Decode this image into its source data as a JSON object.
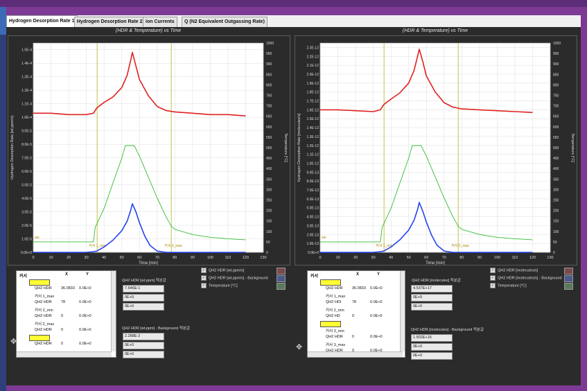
{
  "tabs": [
    {
      "label": "Hydrogen Desorption Rate 1",
      "active": true
    },
    {
      "label": "Hydrogen Desorption Rate 2",
      "active": false
    },
    {
      "label": "ion Currents",
      "active": false
    },
    {
      "label": "Q (N2 Equivalent Outgassing Rate)",
      "active": false
    }
  ],
  "colors": {
    "hdr": "#e02020",
    "background": "#2244ee",
    "temperature": "#33bb33",
    "cursor": "#bbbb33"
  },
  "left": {
    "title": "(HDR & Temperature) vs Time",
    "ylabel": "Hydrogen Desorption Rate [wt.ppm/s]",
    "y2label": "Temperature [°C]",
    "xlabel": "Time [min]",
    "yticks": [
      "0.0E+0",
      "1.0E-5",
      "2.0E-5",
      "3.0E-5",
      "4.0E-5",
      "5.0E-5",
      "6.0E-5",
      "7.0E-5",
      "8.0E-5",
      "9.0E-5",
      "1.0E-4",
      "1.1E-4",
      "1.2E-4",
      "1.3E-4",
      "1.4E-4",
      "1.5E-4"
    ],
    "cursor_labels": {
      "left": "커서 1_min",
      "right": "커서 2_max",
      "y": "ain"
    },
    "cursor_table": {
      "head": {
        "cursor": "커서",
        "x": "X",
        "y": "Y"
      },
      "rows": [
        {
          "name": "",
          "x": "",
          "y": "",
          "swatch": true
        },
        {
          "name": "QH2 HDR",
          "x": "36.0833",
          "y": "0.0E+0",
          "swatch": false
        },
        {
          "name": "커서 1_max",
          "x": "",
          "y": "",
          "swatch": false
        },
        {
          "name": "QH2 HDR",
          "x": "78",
          "y": "0.0E+0",
          "swatch": false
        },
        {
          "name": "커서 2_min",
          "x": "",
          "y": "",
          "swatch": false
        },
        {
          "name": "QH2 HDR",
          "x": "0",
          "y": "0.0E+0",
          "swatch": false
        },
        {
          "name": "커서 2_max",
          "x": "",
          "y": "",
          "swatch": false
        },
        {
          "name": "QH2 HDR",
          "x": "0",
          "y": "0.0E+0",
          "swatch": false
        },
        {
          "name": "",
          "x": "",
          "y": "",
          "swatch": true
        },
        {
          "name": "QH2 HDR",
          "x": "0",
          "y": "0.0E+0",
          "swatch": false
        }
      ]
    },
    "group1": {
      "label": "QH2 HDR [wt.ppm] 적분값",
      "values": [
        "7.646E-1",
        "0E+0",
        "0E+0"
      ]
    },
    "group2": {
      "label": "QH2 HDR [wt.ppm] - Background 적분값",
      "values": [
        "2.288E-2",
        "0E+0",
        "0E+0"
      ]
    },
    "legend": [
      "QH2 HDR [wt.ppm/s]",
      "QH2 HDR [wt.ppm/s] - Background",
      "Temperature [°C]"
    ]
  },
  "right": {
    "title": "(HDR & Temperature) vs Time",
    "ylabel": "Hydrogen Desorption Rate [molecules/s]",
    "y2label": "Temperature [°C]",
    "xlabel": "Time [min]",
    "yticks": [
      "0.0E+0",
      "1.0E-13",
      "2.0E-13",
      "3.0E-13",
      "4.0E-13",
      "5.0E-13",
      "6.0E-13",
      "7.0E-13",
      "8.0E-13",
      "9.0E-13",
      "1.0E-12",
      "1.1E-12",
      "1.2E-12",
      "1.3E-12",
      "1.4E-12",
      "1.5E-12",
      "1.6E-12",
      "1.7E-12",
      "1.8E-12",
      "1.9E-12",
      "2.0E-12",
      "2.1E-12",
      "2.2E-12",
      "2.3E-12"
    ],
    "cursor_labels": {
      "left": "커서 1_min",
      "right": "커서 2_max",
      "y": "ain"
    },
    "cursor_table": {
      "head": {
        "cursor": "커서",
        "x": "X",
        "y": "Y"
      },
      "rows": [
        {
          "name": "",
          "x": "",
          "y": "",
          "swatch": true
        },
        {
          "name": "QH2 HDR",
          "x": "36.0833",
          "y": "0.0E+0",
          "swatch": false
        },
        {
          "name": "커서 1_max",
          "x": "",
          "y": "",
          "swatch": false
        },
        {
          "name": "QH2 HDI",
          "x": "78",
          "y": "0.0E+0",
          "swatch": false
        },
        {
          "name": "커서 2_min",
          "x": "",
          "y": "",
          "swatch": false
        },
        {
          "name": "QH2 HD",
          "x": "0",
          "y": "0.0E+0",
          "swatch": false
        },
        {
          "name": "",
          "x": "",
          "y": "",
          "swatch": true
        },
        {
          "name": "커서 3_min",
          "x": "",
          "y": "",
          "swatch": false
        },
        {
          "name": "QH2 HDR",
          "x": "0",
          "y": "0.0E+0",
          "swatch": false
        },
        {
          "name": "커서 3_max",
          "x": "",
          "y": "",
          "swatch": false
        },
        {
          "name": "QH2 HDR",
          "x": "0",
          "y": "0.0E+0",
          "swatch": false
        }
      ]
    },
    "group1": {
      "label": "QH2 HDR [molecules] 적분값",
      "values": [
        "4.537E+17",
        "0E+0",
        "0E+0"
      ]
    },
    "group2": {
      "label": "QH2 HDR [molecules] - Background 적분값",
      "values": [
        "1.502E+16",
        "0E+0",
        "0E+0"
      ]
    },
    "legend": [
      "QH2 HDR [molecules/s]",
      "QH2 HDR [molecules/s] - Background",
      "Temperature [°C]"
    ]
  },
  "chart_data": [
    {
      "type": "line",
      "title": "(HDR & Temperature) vs Time",
      "xlabel": "Time [min]",
      "ylabel": "Hydrogen Desorption Rate [wt.ppm/s]",
      "y2label": "Temperature [°C]",
      "xlim": [
        0,
        130
      ],
      "ylim": [
        0,
        0.000155
      ],
      "y2lim": [
        0,
        1000
      ],
      "xticks": [
        0,
        10,
        20,
        30,
        40,
        50,
        60,
        70,
        80,
        90,
        100,
        110,
        120,
        130
      ],
      "y2ticks": [
        0,
        50,
        100,
        150,
        200,
        250,
        300,
        350,
        400,
        450,
        500,
        550,
        600,
        650,
        700,
        750,
        800,
        850,
        900,
        950,
        1000
      ],
      "cursors_x": [
        36.08,
        78
      ],
      "series": [
        {
          "name": "QH2 HDR [wt.ppm/s]",
          "axis": "y",
          "x": [
            0,
            10,
            20,
            30,
            34,
            36,
            40,
            45,
            50,
            53,
            55,
            56,
            58,
            60,
            65,
            70,
            75,
            80,
            90,
            100,
            110,
            120
          ],
          "y": [
            0.000103,
            0.000103,
            0.000102,
            0.000102,
            0.000103,
            0.000107,
            0.000111,
            0.000115,
            0.000122,
            0.000131,
            0.000142,
            0.000148,
            0.000138,
            0.000128,
            0.000116,
            0.000108,
            0.000105,
            0.000104,
            0.000103,
            0.000102,
            0.000102,
            0.000101
          ]
        },
        {
          "name": "QH2 HDR [wt.ppm/s] - Background",
          "axis": "y",
          "x": [
            0,
            30,
            34,
            36,
            40,
            45,
            50,
            53,
            55,
            56,
            58,
            60,
            63,
            66,
            70,
            75,
            80,
            90,
            100,
            110,
            120
          ],
          "y": [
            0,
            0,
            5e-07,
            1e-06,
            4e-06,
            9e-06,
            1.6e-05,
            2.3e-05,
            3.1e-05,
            3.6e-05,
            3e-05,
            2.2e-05,
            1.2e-05,
            5e-06,
            1e-06,
            0,
            0,
            0,
            0,
            0,
            0
          ]
        },
        {
          "name": "Temperature [°C]",
          "axis": "y2",
          "x": [
            0,
            34,
            35,
            40,
            45,
            50,
            52,
            57,
            60,
            65,
            70,
            75,
            78,
            80,
            90,
            100,
            110,
            120
          ],
          "y": [
            50,
            50,
            120,
            210,
            330,
            450,
            510,
            510,
            460,
            360,
            260,
            170,
            125,
            110,
            85,
            72,
            65,
            60
          ]
        }
      ]
    },
    {
      "type": "line",
      "title": "(HDR & Temperature) vs Time",
      "xlabel": "Time [min]",
      "ylabel": "Hydrogen Desorption Rate [molecules/s]",
      "y2label": "Temperature [°C]",
      "xlim": [
        0,
        130
      ],
      "ylim": [
        0,
        2.35e-12
      ],
      "y2lim": [
        0,
        1000
      ],
      "xticks": [
        0,
        10,
        20,
        30,
        40,
        50,
        60,
        70,
        80,
        90,
        100,
        110,
        120,
        130
      ],
      "y2ticks": [
        0,
        50,
        100,
        150,
        200,
        250,
        300,
        350,
        400,
        450,
        500,
        550,
        600,
        650,
        700,
        750,
        800,
        850,
        900,
        950,
        1000
      ],
      "cursors_x": [
        36.08,
        78
      ],
      "series": [
        {
          "name": "QH2 HDR [molecules/s]",
          "axis": "y",
          "x": [
            0,
            10,
            20,
            30,
            34,
            36,
            40,
            45,
            50,
            53,
            55,
            56,
            58,
            60,
            65,
            70,
            75,
            80,
            90,
            100,
            110,
            120
          ],
          "y": [
            1.6e-12,
            1.6e-12,
            1.59e-12,
            1.58e-12,
            1.6e-12,
            1.66e-12,
            1.72e-12,
            1.79e-12,
            1.9e-12,
            2.04e-12,
            2.2e-12,
            2.28e-12,
            2.14e-12,
            1.98e-12,
            1.8e-12,
            1.68e-12,
            1.63e-12,
            1.61e-12,
            1.6e-12,
            1.59e-12,
            1.58e-12,
            1.57e-12
          ]
        },
        {
          "name": "QH2 HDR [molecules/s] - Background",
          "axis": "y",
          "x": [
            0,
            30,
            34,
            36,
            40,
            45,
            50,
            53,
            55,
            56,
            58,
            60,
            63,
            66,
            70,
            75,
            80,
            90,
            100,
            110,
            120
          ],
          "y": [
            0,
            0,
            8e-15,
            1.5e-14,
            6e-14,
            1.4e-13,
            2.5e-13,
            3.6e-13,
            4.8e-13,
            5.6e-13,
            4.6e-13,
            3.4e-13,
            1.9e-13,
            8e-14,
            1.5e-14,
            0,
            0,
            0,
            0,
            0,
            0
          ]
        },
        {
          "name": "Temperature [°C]",
          "axis": "y2",
          "x": [
            0,
            34,
            35,
            40,
            45,
            50,
            52,
            57,
            60,
            65,
            70,
            75,
            78,
            80,
            90,
            100,
            110,
            120
          ],
          "y": [
            50,
            50,
            120,
            210,
            330,
            450,
            510,
            510,
            460,
            360,
            260,
            170,
            125,
            110,
            85,
            72,
            65,
            60
          ]
        }
      ]
    }
  ]
}
